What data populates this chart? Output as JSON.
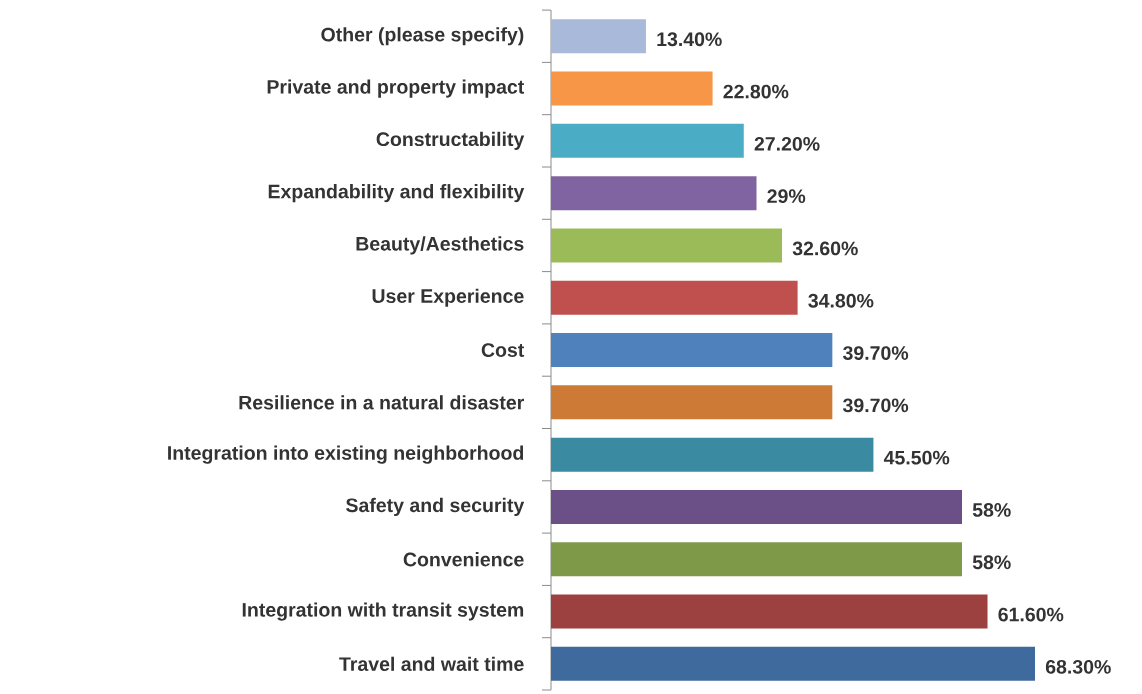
{
  "chart_data": {
    "type": "bar",
    "orientation": "horizontal",
    "categories": [
      "Other (please specify)",
      "Private and property impact",
      "Constructability",
      "Expandability and flexibility",
      "Beauty/Aesthetics",
      "User Experience",
      "Cost",
      "Resilience in a natural disaster",
      "Integration into existing neighborhood",
      "Safety and security",
      "Convenience",
      "Integration with transit system",
      "Travel and wait time"
    ],
    "values": [
      13.4,
      22.8,
      27.2,
      29,
      32.6,
      34.8,
      39.7,
      39.7,
      45.5,
      58,
      58,
      61.6,
      68.3
    ],
    "value_labels": [
      "13.40%",
      "22.80%",
      "27.20%",
      "29%",
      "32.60%",
      "34.80%",
      "39.70%",
      "39.70%",
      "45.50%",
      "58%",
      "58%",
      "61.60%",
      "68.30%"
    ],
    "colors": [
      "#a9b9d9",
      "#f79646",
      "#4bacc6",
      "#8064a2",
      "#9bbb59",
      "#c0504d",
      "#4f81bd",
      "#cc7a35",
      "#3a8ba1",
      "#6a5087",
      "#7e9a48",
      "#9c413f",
      "#3f6a9e"
    ]
  }
}
